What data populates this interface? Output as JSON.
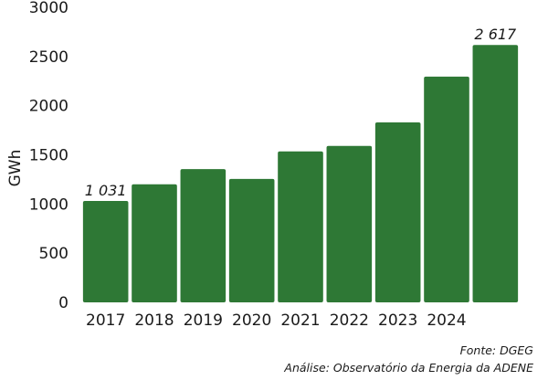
{
  "chart_data": {
    "type": "bar",
    "title": "",
    "xlabel": "",
    "ylabel": "GWh",
    "ylim": [
      0,
      3000
    ],
    "yticks": [
      0,
      500,
      1000,
      1500,
      2000,
      2500,
      3000
    ],
    "categories": [
      "2017",
      "2018",
      "2019",
      "2020",
      "2021",
      "2022",
      "2023",
      "2024",
      ""
    ],
    "values": [
      1031,
      1200,
      1355,
      1255,
      1535,
      1590,
      1830,
      2295,
      2617
    ],
    "data_labels": [
      {
        "index": 0,
        "text": "1 031"
      },
      {
        "index": 8,
        "text": "2 617"
      }
    ],
    "bar_color": "#2e7835",
    "grid": false
  },
  "source": {
    "line1": "Fonte: DGEG",
    "line2": "Análise: Observatório da Energia da ADENE"
  }
}
